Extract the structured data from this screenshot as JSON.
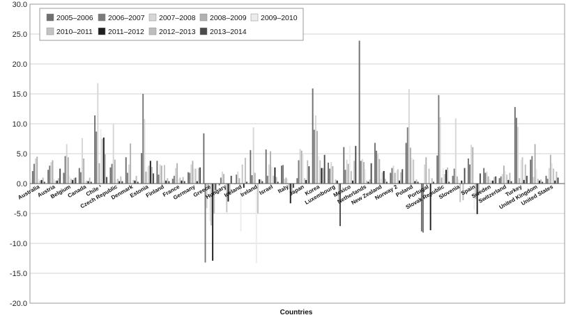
{
  "chart_data": {
    "type": "bar",
    "title": "",
    "xlabel": "Countries",
    "ylabel": "",
    "ylim": [
      -20,
      30
    ],
    "yticks": [
      "-20.0",
      "-15.0",
      "-10.0",
      "-5.0",
      "0.0",
      "5.0",
      "10.0",
      "15.0",
      "20.0",
      "25.0",
      "30.0"
    ],
    "grid": true,
    "legend_position": "top-left",
    "categories": [
      "Australia",
      "Austria",
      "Belgium",
      "Canada",
      "Chile ¹",
      "Czech Republic",
      "Denmark",
      "Estonia",
      "Finland",
      "France",
      "Germany",
      "Greece",
      "Hungary",
      "Iceland",
      "Ireland",
      "Israel",
      "Italy",
      "Japan",
      "Korea",
      "Luxembourg",
      "Mexico",
      "Netherlands",
      "New Zealand",
      "Norway 2",
      "Poland",
      "Portugal",
      "Slovak Republic",
      "Slovenia",
      "Spain",
      "Sweden",
      "Switzerland",
      "Turkey",
      "United Kingdom",
      "United States"
    ],
    "series": [
      {
        "name": "2005–2006",
        "color": "#6f6f6f",
        "values": [
          2.1,
          2.3,
          1.8,
          2.6,
          11.4,
          2.7,
          4.4,
          5.1,
          3.8,
          0.8,
          1.9,
          8.4,
          -0.3,
          -0.1,
          5.6,
          5.7,
          3.0,
          0.9,
          15.9,
          3.5,
          6.1,
          23.9,
          6.8,
          1.8,
          6.8,
          -8.0,
          4.7,
          1.3,
          4.2,
          2.6,
          0.9,
          12.8,
          4.0,
          1.3
        ]
      },
      {
        "name": "2006–2007",
        "color": "#7a7a7a",
        "values": [
          3.3,
          3.0,
          4.6,
          1.9,
          8.7,
          3.3,
          1.8,
          15.0,
          1.5,
          1.3,
          1.8,
          -13.2,
          1.0,
          1.5,
          1.4,
          1.3,
          3.1,
          3.9,
          9.0,
          2.5,
          2.3,
          3.8,
          5.5,
          2.6,
          9.4,
          -8.2,
          14.8,
          2.5,
          3.2,
          1.8,
          1.2,
          11.0,
          4.6,
          0.8
        ]
      },
      {
        "name": "2007–2008",
        "color": "#d6d6d6",
        "values": [
          4.2,
          3.6,
          6.6,
          7.6,
          16.8,
          9.9,
          3.2,
          10.8,
          3.2,
          2.6,
          3.2,
          -4.1,
          2.0,
          2.0,
          9.4,
          3.2,
          0.8,
          5.8,
          11.4,
          3.6,
          4.0,
          4.1,
          4.9,
          3.0,
          15.8,
          3.2,
          11.1,
          10.9,
          6.5,
          2.0,
          1.6,
          9.5,
          1.1,
          2.6
        ]
      },
      {
        "name": "2008–2009",
        "color": "#b1b1b1",
        "values": [
          4.5,
          3.9,
          4.4,
          4.2,
          3.4,
          4.0,
          6.7,
          2.0,
          3.0,
          3.4,
          3.8,
          -1.0,
          1.6,
          0.9,
          1.8,
          5.4,
          1.0,
          5.5,
          8.8,
          2.9,
          3.3,
          3.6,
          4.1,
          1.8,
          6.0,
          4.4,
          1.0,
          1.2,
          6.1,
          1.2,
          3.0,
          0.9,
          6.6,
          4.8
        ]
      },
      {
        "name": "2009–2010",
        "color": "#ececec",
        "values": [
          0.8,
          0.8,
          1.3,
          0.4,
          9.1,
          0.7,
          -0.5,
          2.8,
          0.5,
          0.8,
          2.5,
          -6.3,
          -1.2,
          -8.0,
          -13.3,
          2.8,
          0.8,
          5.1,
          4.6,
          -1.2,
          6.3,
          2.4,
          0.8,
          2.2,
          4.3,
          -1.0,
          2.6,
          0.7,
          -4.4,
          0.8,
          2.1,
          4.0,
          2.5,
          3.4
        ]
      },
      {
        "name": "2010–2011",
        "color": "#c3c3c3",
        "values": [
          0.5,
          0.5,
          0.8,
          0.5,
          7.5,
          0.8,
          0.6,
          3.0,
          3.1,
          1.0,
          2.5,
          -7.0,
          -4.8,
          3.2,
          -5.0,
          1.3,
          -0.9,
          0.9,
          3.9,
          0.7,
          2.1,
          0.5,
          1.9,
          2.4,
          4.0,
          2.5,
          1.6,
          -3.1,
          -2.6,
          0.5,
          1.5,
          4.4,
          0.8,
          2.5
        ]
      },
      {
        "name": "2011–2012",
        "color": "#1f1f1f",
        "values": [
          0.6,
          0.5,
          0.6,
          0.4,
          7.7,
          0.4,
          0.5,
          3.8,
          0.5,
          0.5,
          0.4,
          -12.9,
          -3.0,
          -0.7,
          0.7,
          2.7,
          -3.3,
          0.6,
          2.6,
          0.5,
          0.5,
          0.3,
          2.1,
          0.5,
          0.4,
          -7.8,
          2.3,
          0.5,
          -5.1,
          0.5,
          0.6,
          0.6,
          0.5,
          0.5
        ]
      },
      {
        "name": "2012–2013",
        "color": "#bdbdbd",
        "values": [
          1.0,
          0.9,
          0.9,
          1.0,
          4.9,
          1.2,
          1.3,
          2.8,
          0.9,
          1.1,
          2.6,
          -5.0,
          -1.9,
          4.3,
          0.7,
          1.1,
          -1.6,
          3.9,
          2.6,
          -2.9,
          3.8,
          0.7,
          0.8,
          1.9,
          0.7,
          0.9,
          2.7,
          -2.8,
          -2.0,
          1.1,
          1.8,
          3.2,
          0.7,
          2.0
        ]
      },
      {
        "name": "2013–2014",
        "color": "#4a4a4a",
        "values": [
          0.3,
          2.5,
          1.0,
          0.3,
          1.1,
          0.4,
          0.3,
          1.7,
          0.4,
          0.4,
          2.7,
          -1.1,
          1.3,
          0.3,
          0.4,
          0.3,
          -0.7,
          2.9,
          4.8,
          -7.1,
          6.3,
          3.4,
          0.3,
          2.4,
          0.3,
          0.3,
          0.3,
          2.6,
          1.7,
          1.2,
          0.4,
          1.3,
          0.3,
          1.0
        ]
      }
    ]
  }
}
